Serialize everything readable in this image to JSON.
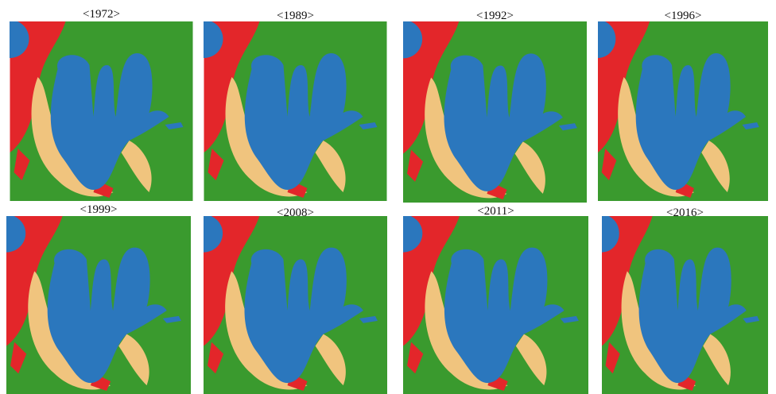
{
  "panels": [
    {
      "label": "<1972>"
    },
    {
      "label": "<1989>"
    },
    {
      "label": "<1992>"
    },
    {
      "label": "<1996>"
    },
    {
      "label": "<1999>"
    },
    {
      "label": "<2008>"
    },
    {
      "label": "<2011>"
    },
    {
      "label": "<2016>"
    }
  ]
}
